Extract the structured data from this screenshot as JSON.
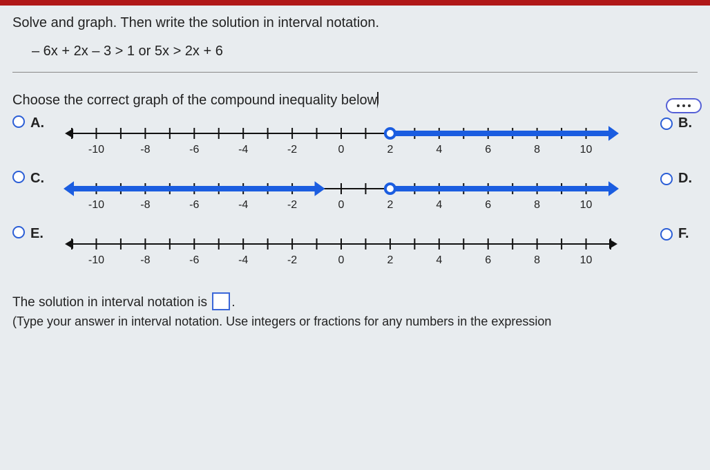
{
  "question": {
    "title": "Solve and graph. Then write the solution in interval notation.",
    "expression": "– 6x + 2x – 3 > 1  or  5x > 2x + 6",
    "subprompt": "Choose the correct graph of the compound inequality below"
  },
  "numberline": {
    "min": -11,
    "max": 11,
    "labels": [
      -10,
      -8,
      -6,
      -4,
      -2,
      0,
      2,
      4,
      6,
      8,
      10
    ],
    "tick_every": 1,
    "axis_color": "#111111",
    "highlight_color": "#1b5de0",
    "label_fontsize": 16,
    "label_color": "#222222",
    "line_width": 2,
    "highlight_width": 8,
    "tick_height": 8,
    "arrow_size": 10
  },
  "options": {
    "left": [
      "A.",
      "C.",
      "E."
    ],
    "right": [
      "B.",
      "D.",
      "F."
    ],
    "graphs": [
      {
        "segments": [
          {
            "from": 2,
            "to": 11,
            "left_end": "open",
            "right_end": "arrow"
          }
        ]
      },
      {
        "segments": [
          {
            "from": -11,
            "to": -1,
            "left_end": "arrow",
            "right_end": "arrow_right"
          },
          {
            "from": 2,
            "to": 11,
            "left_end": "open",
            "right_end": "arrow"
          }
        ]
      },
      {
        "segments": []
      }
    ]
  },
  "solution": {
    "prefix": "The solution in interval notation is",
    "hint": "(Type your answer in interval notation. Use integers or fractions for any numbers in the expression"
  }
}
